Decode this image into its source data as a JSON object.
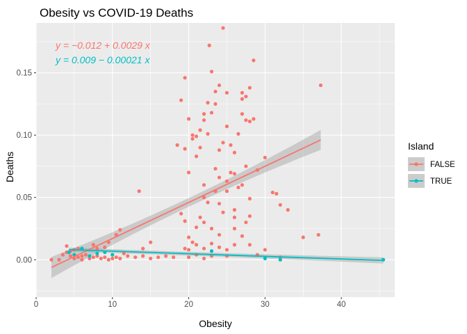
{
  "chart_data": {
    "type": "scatter",
    "title": "Obesity vs COVID-19 Deaths",
    "xlabel": "Obesity",
    "ylabel": "Deaths",
    "xlim": [
      0,
      47
    ],
    "ylim": [
      -0.03,
      0.19
    ],
    "x_ticks": [
      0,
      10,
      20,
      30,
      40
    ],
    "y_ticks": [
      0.0,
      0.05,
      0.1,
      0.15
    ],
    "y_tick_labels": [
      "0.00",
      "0.05",
      "0.10",
      "0.15"
    ],
    "grid": true,
    "legend": {
      "title": "Island",
      "placement": "right"
    },
    "series": [
      {
        "name": "FALSE",
        "color": "#F8766D",
        "equation": "y = −0.012 + 0.0029 x",
        "fit": {
          "intercept": -0.012,
          "slope": 0.0029,
          "x_range": [
            2,
            37.3
          ]
        },
        "points": [
          [
            2,
            0.0
          ],
          [
            3,
            0.0
          ],
          [
            3.5,
            0.004
          ],
          [
            4,
            0.006
          ],
          [
            4.5,
            0.003
          ],
          [
            4,
            0.011
          ],
          [
            5,
            0.001
          ],
          [
            5.5,
            0.002
          ],
          [
            6,
            0.0
          ],
          [
            6,
            0.003
          ],
          [
            6.5,
            0.004
          ],
          [
            7,
            0.001
          ],
          [
            7.5,
            0.002
          ],
          [
            8,
            0.003
          ],
          [
            8.5,
            0.001
          ],
          [
            9,
            0.002
          ],
          [
            9.5,
            0.0
          ],
          [
            10,
            0.001
          ],
          [
            10.5,
            0.002
          ],
          [
            11,
            0.001
          ],
          [
            11.5,
            0.005
          ],
          [
            12,
            0.003
          ],
          [
            13,
            0.002
          ],
          [
            14,
            0.003
          ],
          [
            15,
            0.001
          ],
          [
            16,
            0.002
          ],
          [
            17,
            0.003
          ],
          [
            18,
            0.002
          ],
          [
            7.5,
            0.012
          ],
          [
            9,
            0.01
          ],
          [
            5,
            0.008
          ],
          [
            8,
            0.009
          ],
          [
            9.5,
            0.014
          ],
          [
            10.5,
            0.02
          ],
          [
            13.5,
            0.055
          ],
          [
            14,
            0.009
          ],
          [
            15,
            0.014
          ],
          [
            11,
            0.024
          ],
          [
            5.5,
            0.009
          ],
          [
            4.5,
            0.007
          ],
          [
            18.5,
            0.092
          ],
          [
            19,
            0.128
          ],
          [
            19.5,
            0.146
          ],
          [
            20,
            0.113
          ],
          [
            20.5,
            0.097
          ],
          [
            21,
            0.099
          ],
          [
            21.5,
            0.104
          ],
          [
            22,
            0.112
          ],
          [
            22.5,
            0.126
          ],
          [
            22.7,
            0.172
          ],
          [
            23,
            0.151
          ],
          [
            23.5,
            0.135
          ],
          [
            24,
            0.14
          ],
          [
            24.5,
            0.186
          ],
          [
            25,
            0.134
          ],
          [
            19.5,
            0.089
          ],
          [
            20,
            0.07
          ],
          [
            20.5,
            0.1
          ],
          [
            21,
            0.083
          ],
          [
            21.5,
            0.09
          ],
          [
            22,
            0.117
          ],
          [
            22.5,
            0.101
          ],
          [
            23,
            0.118
          ],
          [
            23.5,
            0.125
          ],
          [
            24,
            0.088
          ],
          [
            24.5,
            0.094
          ],
          [
            25,
            0.107
          ],
          [
            25.5,
            0.092
          ],
          [
            26,
            0.086
          ],
          [
            26.5,
            0.101
          ],
          [
            27,
            0.129
          ],
          [
            27.5,
            0.131
          ],
          [
            28,
            0.138
          ],
          [
            28.5,
            0.16
          ],
          [
            27,
            0.117
          ],
          [
            27.5,
            0.112
          ],
          [
            28,
            0.111
          ],
          [
            28.5,
            0.113
          ],
          [
            27,
            0.134
          ],
          [
            19,
            0.037
          ],
          [
            19.5,
            0.031
          ],
          [
            20,
            0.018
          ],
          [
            20.5,
            0.014
          ],
          [
            21,
            0.026
          ],
          [
            21.5,
            0.034
          ],
          [
            22,
            0.05
          ],
          [
            22.5,
            0.046
          ],
          [
            23,
            0.025
          ],
          [
            23.5,
            0.055
          ],
          [
            24,
            0.045
          ],
          [
            24.5,
            0.038
          ],
          [
            25,
            0.063
          ],
          [
            25.5,
            0.07
          ],
          [
            26,
            0.069
          ],
          [
            26.5,
            0.058
          ],
          [
            27,
            0.06
          ],
          [
            27.5,
            0.075
          ],
          [
            28,
            0.049
          ],
          [
            29,
            0.072
          ],
          [
            30,
            0.082
          ],
          [
            31,
            0.054
          ],
          [
            31.5,
            0.053
          ],
          [
            32,
            0.044
          ],
          [
            33,
            0.04
          ],
          [
            19.5,
            0.009
          ],
          [
            20,
            0.008
          ],
          [
            21,
            0.012
          ],
          [
            22,
            0.009
          ],
          [
            23,
            0.013
          ],
          [
            24,
            0.01
          ],
          [
            25,
            0.008
          ],
          [
            26,
            0.012
          ],
          [
            27,
            0.019
          ],
          [
            28,
            0.012
          ],
          [
            29,
            0.004
          ],
          [
            30,
            0.008
          ],
          [
            22,
            0.03
          ],
          [
            24,
            0.02
          ],
          [
            26,
            0.025
          ],
          [
            28,
            0.035
          ],
          [
            21,
            0.004
          ],
          [
            25,
            0.003
          ],
          [
            32,
            0.002
          ],
          [
            35,
            0.018
          ],
          [
            37,
            0.02
          ],
          [
            37.3,
            0.14
          ],
          [
            20,
            0.002
          ],
          [
            22,
            0.001
          ],
          [
            23,
            0.003
          ],
          [
            26,
            0.034
          ],
          [
            27.5,
            0.03
          ],
          [
            23.5,
            0.073
          ],
          [
            26,
            0.04
          ],
          [
            24,
            0.066
          ],
          [
            22,
            0.06
          ],
          [
            25,
            0.055
          ]
        ]
      },
      {
        "name": "TRUE",
        "color": "#00BFC4",
        "equation": "y = 0.009 − 0.00021 x",
        "fit": {
          "intercept": 0.009,
          "slope": -0.00021,
          "x_range": [
            4.3,
            45.5
          ]
        },
        "points": [
          [
            4.3,
            0.006
          ],
          [
            5,
            0.004
          ],
          [
            6,
            0.009
          ],
          [
            7,
            0.003
          ],
          [
            8,
            0.005
          ],
          [
            9,
            0.006
          ],
          [
            10,
            0.004
          ],
          [
            23,
            0.007
          ],
          [
            30,
            0.001
          ],
          [
            32,
            0.0
          ],
          [
            45.5,
            0.0
          ]
        ]
      }
    ]
  }
}
